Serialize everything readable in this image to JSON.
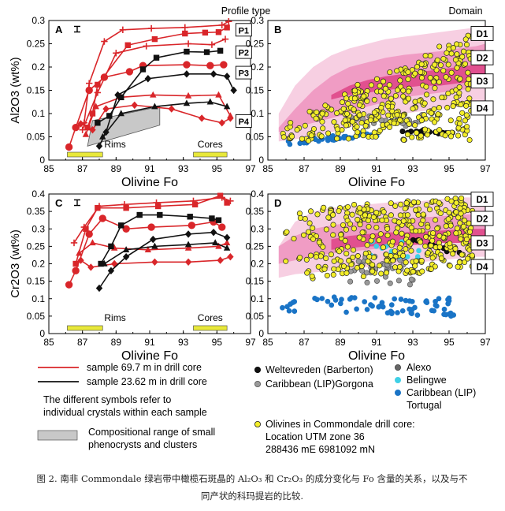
{
  "caption": {
    "line1": "图 2. 南非 Commondale 绿岩带中橄榄石斑晶的 Al₂O₃ 和 Cr₂O₃ 的成分变化与 Fo 含量的关系，以及与不",
    "line2": "同产状的科玛提岩的比较."
  },
  "colors": {
    "red": "#d9262a",
    "black": "#111111",
    "yellow": "#f3ee2a",
    "grey": "#9a9a9a",
    "darkgrey": "#666666",
    "cyan": "#3fd0e6",
    "blue": "#1a74c6",
    "pink_light": "#f7cfe2",
    "pink_mid": "#f09cc4",
    "pink_dark": "#e1508f",
    "rims_bar": "#e8e83a",
    "box_grey": "#c8c8c8"
  },
  "chart_data": [
    {
      "id": "A",
      "type": "line",
      "title": "Profile type",
      "xlabel": "Olivine Fo",
      "ylabel": "Al2O3 (wt%)",
      "xlim": [
        85,
        97
      ],
      "ylim": [
        0,
        0.3
      ],
      "xticks": [
        "85",
        "87",
        "89",
        "91",
        "93",
        "95",
        "97"
      ],
      "yticks": [
        "0",
        "0.05",
        "0.1",
        "0.15",
        "0.2",
        "0.25",
        "0.3"
      ],
      "profile_labels": [
        {
          "text": "P1",
          "x": 96.5,
          "y": 0.28
        },
        {
          "text": "P2",
          "x": 96.5,
          "y": 0.232
        },
        {
          "text": "P3",
          "x": 96.5,
          "y": 0.188
        },
        {
          "text": "P4",
          "x": 96.5,
          "y": 0.084
        }
      ],
      "rims_label": "Rims",
      "cores_label": "Cores",
      "rims_range": [
        86.1,
        88.2
      ],
      "cores_range": [
        93.6,
        95.6
      ],
      "error_bar": 0.006,
      "grey_box": [
        [
          87.6,
          0.085
        ],
        [
          91.6,
          0.115
        ],
        [
          91.6,
          0.075
        ],
        [
          87.3,
          0.03
        ]
      ],
      "series": [
        {
          "color": "red",
          "marker": "plus",
          "points": [
            [
              86.8,
              0.075
            ],
            [
              87.1,
              0.08
            ],
            [
              87.4,
              0.165
            ],
            [
              88.3,
              0.255
            ],
            [
              89.4,
              0.28
            ],
            [
              91.1,
              0.283
            ],
            [
              93.1,
              0.285
            ],
            [
              95.3,
              0.29
            ],
            [
              95.7,
              0.298
            ]
          ]
        },
        {
          "color": "red",
          "marker": "square",
          "points": [
            [
              87.3,
              0.07
            ],
            [
              87.6,
              0.1
            ],
            [
              87.9,
              0.162
            ],
            [
              89.7,
              0.247
            ],
            [
              91.3,
              0.26
            ],
            [
              93.1,
              0.272
            ],
            [
              94.3,
              0.274
            ],
            [
              95.1,
              0.275
            ],
            [
              95.6,
              0.285
            ]
          ]
        },
        {
          "color": "red",
          "marker": "circle",
          "points": [
            [
              86.2,
              0.028
            ],
            [
              86.6,
              0.07
            ],
            [
              87.4,
              0.15
            ],
            [
              88.3,
              0.178
            ],
            [
              89.8,
              0.19
            ],
            [
              90.6,
              0.203
            ],
            [
              93.2,
              0.205
            ],
            [
              94.6,
              0.203
            ],
            [
              95.4,
              0.205
            ]
          ]
        },
        {
          "color": "red",
          "marker": "plus",
          "points": [
            [
              87.0,
              0.065
            ],
            [
              87.9,
              0.145
            ],
            [
              89.0,
              0.23
            ],
            [
              90.8,
              0.245
            ],
            [
              93.3,
              0.25
            ],
            [
              94.7,
              0.248
            ],
            [
              95.5,
              0.26
            ]
          ]
        },
        {
          "color": "red",
          "marker": "triangle",
          "points": [
            [
              87.2,
              0.055
            ],
            [
              87.8,
              0.115
            ],
            [
              89.3,
              0.135
            ],
            [
              91.2,
              0.14
            ],
            [
              93.3,
              0.138
            ],
            [
              95.1,
              0.14
            ],
            [
              95.8,
              0.095
            ]
          ]
        },
        {
          "color": "red",
          "marker": "diamond",
          "points": [
            [
              86.9,
              0.078
            ],
            [
              87.6,
              0.065
            ],
            [
              88.4,
              0.11
            ],
            [
              90.1,
              0.118
            ],
            [
              92.3,
              0.11
            ],
            [
              94.1,
              0.09
            ],
            [
              95.3,
              0.08
            ],
            [
              95.8,
              0.09
            ]
          ]
        },
        {
          "color": "black",
          "marker": "square",
          "points": [
            [
              87.9,
              0.08
            ],
            [
              88.6,
              0.095
            ],
            [
              89.3,
              0.135
            ],
            [
              90.6,
              0.195
            ],
            [
              91.4,
              0.22
            ],
            [
              93.2,
              0.233
            ],
            [
              94.4,
              0.232
            ],
            [
              95.2,
              0.235
            ]
          ]
        },
        {
          "color": "black",
          "marker": "diamond",
          "points": [
            [
              88.0,
              0.03
            ],
            [
              88.4,
              0.06
            ],
            [
              89.1,
              0.14
            ],
            [
              90.9,
              0.175
            ],
            [
              93.2,
              0.185
            ],
            [
              94.8,
              0.185
            ],
            [
              95.6,
              0.18
            ],
            [
              96.0,
              0.15
            ]
          ]
        },
        {
          "color": "black",
          "marker": "triangle",
          "points": [
            [
              88.2,
              0.05
            ],
            [
              89.3,
              0.1
            ],
            [
              91.3,
              0.115
            ],
            [
              93.2,
              0.122
            ],
            [
              94.6,
              0.125
            ],
            [
              95.6,
              0.115
            ]
          ]
        }
      ]
    },
    {
      "id": "B",
      "type": "scatter",
      "title": "Domain",
      "xlabel": "Olivine Fo",
      "ylabel": "",
      "xlim": [
        85,
        97
      ],
      "ylim": [
        0,
        0.3
      ],
      "xticks": [
        "85",
        "87",
        "89",
        "91",
        "93",
        "95",
        "97"
      ],
      "yticks": [
        "0",
        "0.05",
        "0.1",
        "0.15",
        "0.2",
        "0.25",
        "0.3"
      ],
      "domains": [
        "D1",
        "D2",
        "D3",
        "D4"
      ],
      "domain_label_y": [
        0.272,
        0.22,
        0.17,
        0.112
      ]
    },
    {
      "id": "C",
      "type": "line",
      "xlabel": "Olivine Fo",
      "ylabel": "Cr2O3 (wt%)",
      "xlim": [
        85,
        97
      ],
      "ylim": [
        0,
        0.4
      ],
      "xticks": [
        "85",
        "87",
        "89",
        "91",
        "93",
        "95",
        "97"
      ],
      "yticks": [
        "0",
        "0.05",
        "0.1",
        "0.15",
        "0.2",
        "0.25",
        "0.3",
        "0.35",
        "0.4"
      ],
      "rims_label": "Rims",
      "cores_label": "Cores",
      "rims_range": [
        86.1,
        88.2
      ],
      "cores_range": [
        93.6,
        95.6
      ],
      "error_bar": 0.008,
      "series": [
        {
          "color": "red",
          "marker": "plus",
          "points": [
            [
              86.5,
              0.26
            ],
            [
              87.1,
              0.305
            ],
            [
              88.0,
              0.365
            ],
            [
              89.5,
              0.37
            ],
            [
              91.4,
              0.375
            ],
            [
              93.6,
              0.38
            ],
            [
              95.3,
              0.39
            ],
            [
              95.8,
              0.38
            ]
          ]
        },
        {
          "color": "red",
          "marker": "square",
          "points": [
            [
              86.6,
              0.2
            ],
            [
              87.2,
              0.3
            ],
            [
              87.9,
              0.36
            ],
            [
              89.6,
              0.36
            ],
            [
              91.5,
              0.365
            ],
            [
              93.7,
              0.37
            ],
            [
              95.2,
              0.395
            ],
            [
              95.6,
              0.375
            ]
          ]
        },
        {
          "color": "red",
          "marker": "circle",
          "points": [
            [
              86.2,
              0.14
            ],
            [
              86.6,
              0.18
            ],
            [
              87.4,
              0.285
            ],
            [
              88.2,
              0.33
            ],
            [
              89.6,
              0.3
            ],
            [
              91.1,
              0.305
            ],
            [
              93.5,
              0.31
            ],
            [
              94.8,
              0.32
            ],
            [
              95.3,
              0.305
            ]
          ]
        },
        {
          "color": "red",
          "marker": "triangle",
          "points": [
            [
              86.8,
              0.23
            ],
            [
              87.6,
              0.26
            ],
            [
              88.9,
              0.245
            ],
            [
              90.9,
              0.24
            ],
            [
              93.3,
              0.245
            ],
            [
              95.1,
              0.25
            ],
            [
              95.6,
              0.26
            ]
          ]
        },
        {
          "color": "red",
          "marker": "diamond",
          "points": [
            [
              86.9,
              0.21
            ],
            [
              87.5,
              0.19
            ],
            [
              88.9,
              0.2
            ],
            [
              91.3,
              0.205
            ],
            [
              93.3,
              0.205
            ],
            [
              95.2,
              0.21
            ],
            [
              95.8,
              0.22
            ]
          ]
        },
        {
          "color": "black",
          "marker": "square",
          "points": [
            [
              88.1,
              0.2
            ],
            [
              88.7,
              0.25
            ],
            [
              89.3,
              0.31
            ],
            [
              90.4,
              0.34
            ],
            [
              91.6,
              0.34
            ],
            [
              93.4,
              0.335
            ],
            [
              94.7,
              0.33
            ],
            [
              95.1,
              0.325
            ]
          ]
        },
        {
          "color": "black",
          "marker": "diamond",
          "points": [
            [
              88.0,
              0.13
            ],
            [
              88.7,
              0.18
            ],
            [
              89.6,
              0.22
            ],
            [
              91.2,
              0.27
            ],
            [
              93.3,
              0.285
            ],
            [
              94.8,
              0.29
            ],
            [
              95.6,
              0.275
            ]
          ]
        },
        {
          "color": "black",
          "marker": "triangle",
          "points": [
            [
              88.3,
              0.2
            ],
            [
              89.6,
              0.24
            ],
            [
              91.3,
              0.25
            ],
            [
              93.3,
              0.255
            ],
            [
              94.9,
              0.26
            ],
            [
              95.6,
              0.245
            ]
          ]
        }
      ]
    },
    {
      "id": "D",
      "type": "scatter",
      "xlabel": "Olivine Fo",
      "ylabel": "",
      "xlim": [
        85,
        97
      ],
      "ylim": [
        0,
        0.4
      ],
      "xticks": [
        "85",
        "87",
        "89",
        "91",
        "93",
        "95",
        "97"
      ],
      "yticks": [
        "0",
        "0.05",
        "0.1",
        "0.15",
        "0.2",
        "0.25",
        "0.3",
        "0.35",
        "0.4"
      ],
      "domains": [
        "D1",
        "D2",
        "D3",
        "D4"
      ],
      "domain_label_y": [
        0.385,
        0.33,
        0.26,
        0.192
      ]
    }
  ],
  "legend": {
    "red_line": "sample 69.7 m in drill core",
    "black_line": "sample 23.62 m in drill core",
    "symbols_note_1": "The different symbols refer to",
    "symbols_note_2": "individual crystals within each sample",
    "grey_box_1": "Compositional range of small",
    "grey_box_2": "phenocrysts and clusters",
    "weltevreden": "Weltevreden (Barberton)",
    "caribbean_gorgona": "Caribbean (LIP)Gorgona",
    "alexo": "Alexo",
    "belingwe": "Belingwe",
    "caribbean_tortugal_1": "Caribbean (LIP)",
    "caribbean_tortugal_2": "Tortugal",
    "commondale_1": "Olivines in Commondale drill core:",
    "commondale_2": "Location UTM zone 36",
    "commondale_3": "288436 mE 6981092 mN"
  }
}
